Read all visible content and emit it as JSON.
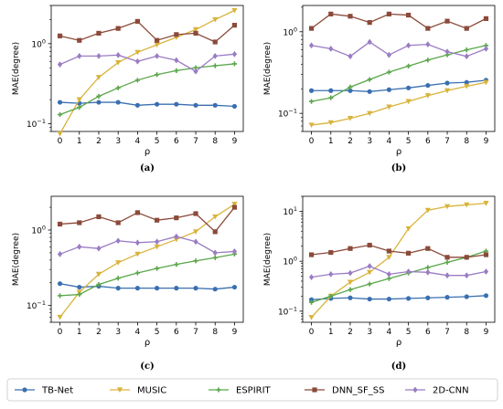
{
  "legend": [
    {
      "name": "TB-Net",
      "color": "#3a6fb0",
      "marker": "circle"
    },
    {
      "name": "MUSIC",
      "color": "#d9b33a",
      "marker": "triangle-down"
    },
    {
      "name": "ESPIRIT",
      "color": "#5aa64a",
      "marker": "plus"
    },
    {
      "name": "DNN_SF_SS",
      "color": "#8b4a3a",
      "marker": "square"
    },
    {
      "name": "2D-CNN",
      "color": "#9a7cc4",
      "marker": "diamond"
    }
  ],
  "chart_data": [
    {
      "type": "line",
      "caption": "(a)",
      "xlabel": "ρ",
      "ylabel": "MAE(degree)",
      "yscale": "log",
      "ylim": [
        0.08,
        3.0
      ],
      "yticks": [
        0.1,
        1
      ],
      "x": [
        0,
        1,
        2,
        3,
        4,
        5,
        6,
        7,
        8,
        9
      ],
      "series": [
        {
          "name": "TB-Net",
          "values": [
            0.185,
            0.18,
            0.185,
            0.185,
            0.17,
            0.175,
            0.175,
            0.17,
            0.17,
            0.165
          ]
        },
        {
          "name": "MUSIC",
          "values": [
            0.075,
            0.2,
            0.38,
            0.58,
            0.78,
            0.97,
            1.2,
            1.5,
            2.0,
            2.6
          ]
        },
        {
          "name": "ESPIRIT",
          "values": [
            0.13,
            0.16,
            0.22,
            0.28,
            0.35,
            0.41,
            0.46,
            0.5,
            0.53,
            0.56
          ]
        },
        {
          "name": "DNN_SF_SS",
          "values": [
            1.25,
            1.1,
            1.35,
            1.55,
            1.9,
            1.1,
            1.3,
            1.35,
            1.05,
            1.7
          ]
        },
        {
          "name": "2D-CNN",
          "values": [
            0.55,
            0.7,
            0.7,
            0.72,
            0.6,
            0.7,
            0.62,
            0.45,
            0.7,
            0.74
          ]
        }
      ]
    },
    {
      "type": "line",
      "caption": "(b)",
      "xlabel": "ρ",
      "ylabel": "MAE(degree)",
      "yscale": "log",
      "ylim": [
        0.06,
        2.1
      ],
      "yticks": [
        0.1,
        1
      ],
      "x": [
        0,
        1,
        2,
        3,
        4,
        5,
        6,
        7,
        8,
        9
      ],
      "series": [
        {
          "name": "TB-Net",
          "values": [
            0.19,
            0.19,
            0.19,
            0.185,
            0.195,
            0.205,
            0.22,
            0.235,
            0.24,
            0.255
          ]
        },
        {
          "name": "MUSIC",
          "values": [
            0.072,
            0.077,
            0.087,
            0.1,
            0.12,
            0.14,
            0.165,
            0.19,
            0.215,
            0.24
          ]
        },
        {
          "name": "ESPIRIT",
          "values": [
            0.14,
            0.155,
            0.21,
            0.26,
            0.32,
            0.38,
            0.45,
            0.52,
            0.6,
            0.68
          ]
        },
        {
          "name": "DNN_SF_SS",
          "values": [
            1.1,
            1.65,
            1.55,
            1.3,
            1.65,
            1.6,
            1.1,
            1.35,
            1.1,
            1.45
          ]
        },
        {
          "name": "2D-CNN",
          "values": [
            0.68,
            0.62,
            0.5,
            0.75,
            0.52,
            0.68,
            0.7,
            0.57,
            0.5,
            0.62
          ]
        }
      ]
    },
    {
      "type": "line",
      "caption": "(c)",
      "xlabel": "ρ",
      "ylabel": "MAE(degree)",
      "yscale": "log",
      "ylim": [
        0.06,
        2.8
      ],
      "yticks": [
        0.1,
        1
      ],
      "x": [
        0,
        1,
        2,
        3,
        4,
        5,
        6,
        7,
        8,
        9
      ],
      "series": [
        {
          "name": "TB-Net",
          "values": [
            0.195,
            0.175,
            0.18,
            0.17,
            0.17,
            0.17,
            0.17,
            0.17,
            0.165,
            0.175
          ]
        },
        {
          "name": "MUSIC",
          "values": [
            0.07,
            0.15,
            0.26,
            0.37,
            0.48,
            0.6,
            0.75,
            0.95,
            1.5,
            2.2
          ]
        },
        {
          "name": "ESPIRIT",
          "values": [
            0.135,
            0.14,
            0.19,
            0.23,
            0.27,
            0.31,
            0.35,
            0.39,
            0.43,
            0.48
          ]
        },
        {
          "name": "DNN_SF_SS",
          "values": [
            1.2,
            1.25,
            1.5,
            1.25,
            1.7,
            1.35,
            1.45,
            1.65,
            0.95,
            2.0
          ]
        },
        {
          "name": "2D-CNN",
          "values": [
            0.48,
            0.6,
            0.57,
            0.72,
            0.68,
            0.7,
            0.82,
            0.7,
            0.5,
            0.52
          ]
        }
      ]
    },
    {
      "type": "line",
      "caption": "(d)",
      "xlabel": "ρ",
      "ylabel": "MAE(degree)",
      "yscale": "log",
      "ylim": [
        0.06,
        20.0
      ],
      "yticks": [
        0.1,
        1,
        10
      ],
      "x": [
        0,
        1,
        2,
        3,
        4,
        5,
        6,
        7,
        8,
        9
      ],
      "series": [
        {
          "name": "TB-Net",
          "values": [
            0.17,
            0.18,
            0.185,
            0.175,
            0.175,
            0.18,
            0.185,
            0.19,
            0.195,
            0.205
          ]
        },
        {
          "name": "MUSIC",
          "values": [
            0.075,
            0.2,
            0.38,
            0.6,
            1.2,
            4.5,
            10.5,
            12.5,
            13.5,
            14.5
          ]
        },
        {
          "name": "ESPIRIT",
          "values": [
            0.15,
            0.2,
            0.27,
            0.35,
            0.45,
            0.58,
            0.75,
            0.95,
            1.2,
            1.6
          ]
        },
        {
          "name": "DNN_SF_SS",
          "values": [
            1.35,
            1.5,
            1.8,
            2.1,
            1.6,
            1.45,
            1.8,
            1.2,
            1.2,
            1.35
          ]
        },
        {
          "name": "2D-CNN",
          "values": [
            0.48,
            0.55,
            0.58,
            0.8,
            0.55,
            0.62,
            0.6,
            0.52,
            0.52,
            0.62
          ]
        }
      ]
    }
  ]
}
